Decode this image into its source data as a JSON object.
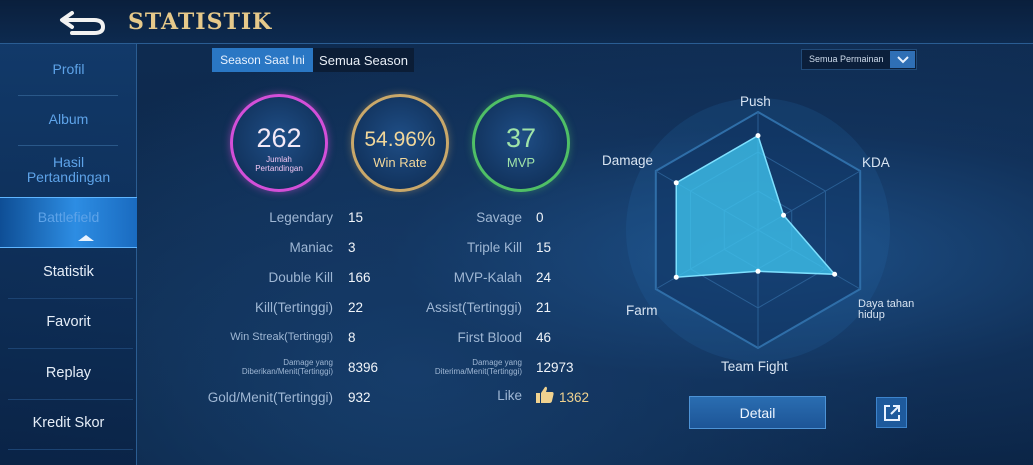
{
  "header": {
    "title": "STATISTIK",
    "back_icon": "back-arrow-icon"
  },
  "sidebar": {
    "top_items": [
      {
        "label": "Profil"
      },
      {
        "label": "Album"
      },
      {
        "label": "Hasil Pertandingan"
      },
      {
        "label": "Battlefield"
      }
    ],
    "sub_items": [
      {
        "label": "Statistik"
      },
      {
        "label": "Favorit"
      },
      {
        "label": "Replay"
      },
      {
        "label": "Kredit Skor"
      }
    ]
  },
  "tabs": {
    "current": "Season Saat Ini",
    "all": "Semua Season"
  },
  "filter": {
    "selected": "Semua Permainan"
  },
  "circles": {
    "matches": {
      "value": "262",
      "label": "Jumlah Pertandingan"
    },
    "winrate": {
      "value": "54.96%",
      "label": "Win Rate"
    },
    "mvp": {
      "value": "37",
      "label": "MVP"
    }
  },
  "stats_left": [
    {
      "label": "Legendary",
      "value": "15"
    },
    {
      "label": "Maniac",
      "value": "3"
    },
    {
      "label": "Double Kill",
      "value": "166"
    },
    {
      "label": "Kill(Tertinggi)",
      "value": "22"
    },
    {
      "label": "Win Streak(Tertinggi)",
      "value": "8"
    },
    {
      "label": "Damage yang Diberikan/Menit(Tertinggi)",
      "value": "8396"
    },
    {
      "label": "Gold/Menit(Tertinggi)",
      "value": "932"
    }
  ],
  "stats_right": [
    {
      "label": "Savage",
      "value": "0"
    },
    {
      "label": "Triple Kill",
      "value": "15"
    },
    {
      "label": "MVP-Kalah",
      "value": "24"
    },
    {
      "label": "Assist(Tertinggi)",
      "value": "21"
    },
    {
      "label": "First Blood",
      "value": "46"
    },
    {
      "label": "Damage yang Diterima/Menit(Tertinggi)",
      "value": "12973"
    },
    {
      "label": "Like",
      "value": "1362"
    }
  ],
  "radar": {
    "axes": [
      "Push",
      "KDA",
      "Daya tahan hidup",
      "Team Fight",
      "Farm",
      "Damage"
    ],
    "values": [
      0.8,
      0.25,
      0.75,
      0.35,
      0.8,
      0.8
    ]
  },
  "buttons": {
    "detail": "Detail"
  },
  "colors": {
    "accent": "#2a77c4",
    "title_gold": "#e6c98a",
    "matches_ring": "#d34fd8",
    "winrate_ring": "#c9a86a",
    "mvp_ring": "#4fbf66",
    "radar_fill": "#3fc4ee"
  }
}
